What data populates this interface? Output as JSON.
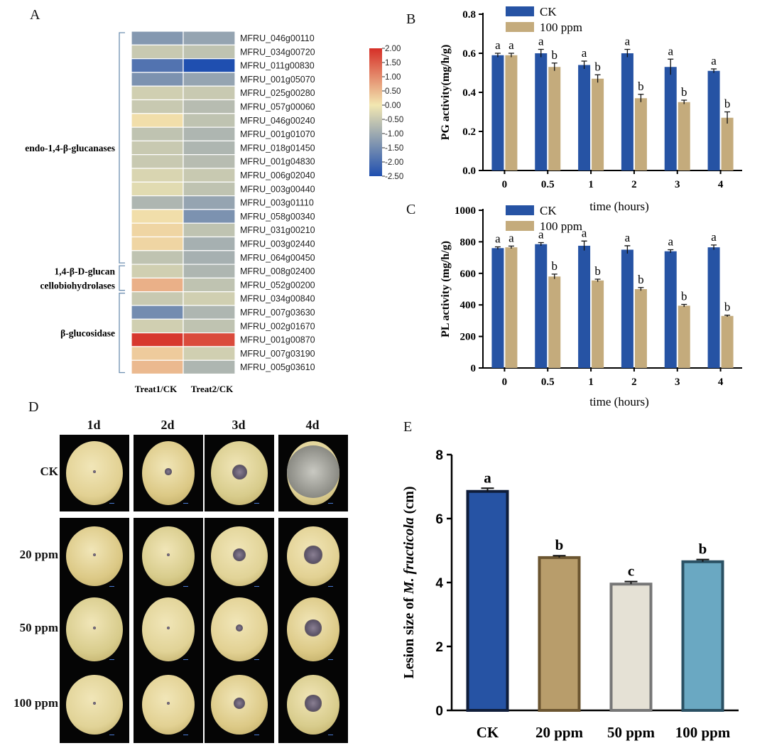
{
  "panels": {
    "A": "A",
    "B": "B",
    "C": "C",
    "D": "D",
    "E": "E"
  },
  "heatmap": {
    "columns": [
      "Treat1/CK",
      "Treat2/CK"
    ],
    "genes": [
      "MFRU_046g00110",
      "MFRU_034g00720",
      "MFRU_011g00830",
      "MFRU_001g05070",
      "MFRU_025g00280",
      "MFRU_057g00060",
      "MFRU_046g00240",
      "MFRU_001g01070",
      "MFRU_018g01450",
      "MFRU_001g04830",
      "MFRU_006g02040",
      "MFRU_003g00440",
      "MFRU_003g01110",
      "MFRU_058g00340",
      "MFRU_031g00210",
      "MFRU_003g02440",
      "MFRU_064g00450",
      "MFRU_008g02400",
      "MFRU_052g00200",
      "MFRU_034g00840",
      "MFRU_007g03630",
      "MFRU_002g01670",
      "MFRU_001g00870",
      "MFRU_007g03190",
      "MFRU_005g03610"
    ],
    "values": [
      [
        -1.3,
        -1.1
      ],
      [
        -0.5,
        -0.6
      ],
      [
        -1.9,
        -2.5
      ],
      [
        -1.4,
        -1.1
      ],
      [
        -0.4,
        -0.5
      ],
      [
        -0.5,
        -0.7
      ],
      [
        0.1,
        -0.6
      ],
      [
        -0.6,
        -0.8
      ],
      [
        -0.5,
        -0.8
      ],
      [
        -0.5,
        -0.7
      ],
      [
        -0.3,
        -0.5
      ],
      [
        -0.2,
        -0.6
      ],
      [
        -0.8,
        -1.1
      ],
      [
        0.1,
        -1.4
      ],
      [
        0.2,
        -0.6
      ],
      [
        0.2,
        -0.9
      ],
      [
        -0.6,
        -0.9
      ],
      [
        -0.4,
        -0.8
      ],
      [
        0.6,
        -0.6
      ],
      [
        -0.5,
        -0.4
      ],
      [
        -1.5,
        -0.8
      ],
      [
        -0.4,
        -0.6
      ],
      [
        1.9,
        1.7
      ],
      [
        0.3,
        -0.4
      ],
      [
        0.5,
        -0.8
      ]
    ],
    "groups": [
      {
        "lines": [
          "endo-1,4-β-glucanases"
        ],
        "start": 0,
        "end": 16
      },
      {
        "lines": [
          "1,4-β-D-glucan",
          "cellobiohydrolases"
        ],
        "start": 17,
        "end": 18
      },
      {
        "lines": [
          "β-glucosidase"
        ],
        "start": 19,
        "end": 24
      }
    ],
    "colorbar_ticks": [
      "2.00",
      "1.50",
      "1.00",
      "0.50",
      "0.00",
      "-0.50",
      "-1.00",
      "-1.50",
      "-2.00",
      "-2.50"
    ],
    "range": [
      -2.5,
      2.0
    ],
    "colors": {
      "high": "#d62f27",
      "mid": "#f2e7b1",
      "low": "#1f4fb0"
    }
  },
  "chart_data": [
    {
      "id": "B",
      "type": "bar",
      "categories": [
        "0",
        "0.5",
        "1",
        "2",
        "3",
        "4"
      ],
      "series": [
        {
          "name": "CK",
          "color": "#2653a4",
          "values": [
            0.59,
            0.6,
            0.54,
            0.6,
            0.53,
            0.51
          ],
          "errors": [
            0.01,
            0.02,
            0.02,
            0.02,
            0.04,
            0.01
          ],
          "letters": [
            "a",
            "a",
            "a",
            "a",
            "a",
            "a"
          ]
        },
        {
          "name": "100 ppm",
          "color": "#c4ab7c",
          "values": [
            0.59,
            0.53,
            0.47,
            0.37,
            0.35,
            0.27
          ],
          "errors": [
            0.01,
            0.02,
            0.02,
            0.02,
            0.01,
            0.03
          ],
          "letters": [
            "a",
            "b",
            "b",
            "b",
            "b",
            "b"
          ]
        }
      ],
      "ylabel": "PG activity(mg/h/g)",
      "xlabel": "time (hours)",
      "ylim": [
        0,
        0.8
      ],
      "yticks": [
        "0.0",
        "0.2",
        "0.4",
        "0.6",
        "0.8"
      ]
    },
    {
      "id": "C",
      "type": "bar",
      "categories": [
        "0",
        "0.5",
        "1",
        "2",
        "3",
        "4"
      ],
      "series": [
        {
          "name": "CK",
          "color": "#2653a4",
          "values": [
            760,
            785,
            775,
            750,
            740,
            765
          ],
          "errors": [
            8,
            10,
            30,
            25,
            10,
            15
          ],
          "letters": [
            "a",
            "a",
            "a",
            "a",
            "a",
            "a"
          ]
        },
        {
          "name": "100 ppm",
          "color": "#c4ab7c",
          "values": [
            765,
            580,
            555,
            500,
            395,
            330
          ],
          "errors": [
            8,
            15,
            8,
            10,
            8,
            5
          ],
          "letters": [
            "a",
            "b",
            "b",
            "b",
            "b",
            "b"
          ]
        }
      ],
      "ylabel": "PL activity (mg/h/g)",
      "xlabel": "time (hours)",
      "ylim": [
        0,
        1000
      ],
      "yticks": [
        "0",
        "200",
        "400",
        "600",
        "800",
        "1000"
      ]
    },
    {
      "id": "E",
      "type": "bar",
      "categories": [
        "CK",
        "20 ppm",
        "50 ppm",
        "100 ppm"
      ],
      "values": [
        6.85,
        4.78,
        3.95,
        4.65
      ],
      "errors": [
        0.1,
        0.06,
        0.08,
        0.07
      ],
      "letters": [
        "a",
        "b",
        "c",
        "b"
      ],
      "fills": [
        "#2653a4",
        "#b89d6b",
        "#e5e1d5",
        "#6aa8c2"
      ],
      "edges": [
        "#0f1d3a",
        "#6b5530",
        "#777777",
        "#2a5063"
      ],
      "ylabel_prefix": "Lesion size of ",
      "ylabel_italic": "M. fructicola",
      "ylabel_suffix": " (cm)",
      "ylim": [
        0,
        8
      ],
      "yticks": [
        "0",
        "2",
        "4",
        "6",
        "8"
      ]
    }
  ],
  "photos": {
    "days": [
      "1d",
      "2d",
      "3d",
      "4d"
    ],
    "rows": [
      "CK",
      "20 ppm",
      "50 ppm",
      "100 ppm"
    ],
    "lesion_stage": [
      [
        0.08,
        0.22,
        0.5,
        1.0
      ],
      [
        0.05,
        0.08,
        0.45,
        0.6
      ],
      [
        0.03,
        0.06,
        0.25,
        0.55
      ],
      [
        0.03,
        0.05,
        0.4,
        0.55
      ]
    ]
  }
}
